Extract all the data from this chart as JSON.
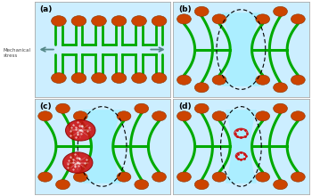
{
  "bg_color": "#cceeff",
  "lipid_green": "#00aa00",
  "head_color": "#cc4400",
  "head_edge": "#883300",
  "water_color": "#aaeeff",
  "arrow_color": "#558888",
  "panel_labels": [
    "(a)",
    "(b)",
    "(c)",
    "(d)"
  ],
  "mechanical_stress_label": "Mechanical\nstress",
  "fig_bg": "#ffffff",
  "border_color": "#aaaaaa",
  "fullerene_red": "#cc1111",
  "fullerene_dark": "#880000"
}
